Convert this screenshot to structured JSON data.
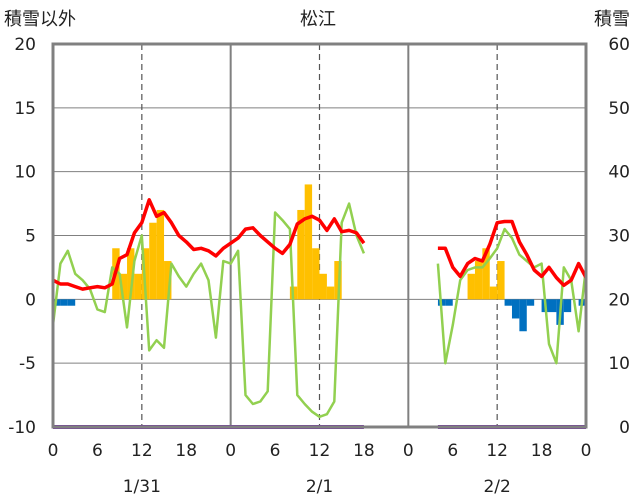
{
  "chart_data": {
    "type": "combo",
    "title": "松江",
    "left_axis_title": "積雪以外",
    "right_axis_title": "積雪",
    "left_ylim": [
      -10,
      20
    ],
    "left_ticks": [
      "20",
      "15",
      "10",
      "5",
      "0",
      "-5",
      "-10"
    ],
    "right_ylim": [
      0,
      60
    ],
    "right_ticks": [
      "60",
      "50",
      "40",
      "30",
      "20",
      "10",
      "0"
    ],
    "x_range_hours": [
      0,
      72
    ],
    "x_tick_labels": [
      "0",
      "6",
      "12",
      "18",
      "0",
      "6",
      "12",
      "18",
      "0",
      "6",
      "12",
      "18",
      "0"
    ],
    "day_labels": [
      "1/31",
      "2/1",
      "2/2"
    ],
    "colors": {
      "frame": "#808080",
      "grid": "#808080",
      "temperature": "#ff0000",
      "wind": "#92d050",
      "precip_pos": "#ffc000",
      "precip_neg": "#0070c0",
      "snow_depth": "#7030a0"
    },
    "precip_pos": [
      [
        8.5,
        4
      ],
      [
        9.5,
        2
      ],
      [
        10.5,
        4
      ],
      [
        11.5,
        2
      ],
      [
        12.5,
        4
      ],
      [
        13.5,
        6
      ],
      [
        14.5,
        7
      ],
      [
        15.5,
        3
      ],
      [
        32.5,
        1
      ],
      [
        33.5,
        7
      ],
      [
        34.5,
        9
      ],
      [
        35.5,
        4
      ],
      [
        36.5,
        2
      ],
      [
        37.5,
        1
      ],
      [
        38.5,
        3
      ],
      [
        56.5,
        2
      ],
      [
        57.5,
        3
      ],
      [
        58.5,
        4
      ],
      [
        59.5,
        1
      ],
      [
        60.5,
        3
      ]
    ],
    "precip_neg": [
      [
        0.5,
        -0.5
      ],
      [
        1.5,
        -0.5
      ],
      [
        2.5,
        -0.5
      ],
      [
        52.5,
        -0.5
      ],
      [
        53.5,
        -0.5
      ],
      [
        61.5,
        -0.5
      ],
      [
        62.5,
        -1.5
      ],
      [
        63.5,
        -2.5
      ],
      [
        64.5,
        -0.5
      ],
      [
        66.5,
        -1
      ],
      [
        67.5,
        -1
      ],
      [
        68.5,
        -2
      ],
      [
        69.5,
        -1
      ],
      [
        71.5,
        -0.5
      ]
    ],
    "temperature": [
      [
        [
          0,
          1.5
        ],
        [
          1,
          1.2
        ],
        [
          2,
          1.2
        ],
        [
          3,
          1.0
        ],
        [
          4,
          0.8
        ],
        [
          5,
          0.9
        ],
        [
          6,
          1.0
        ],
        [
          7,
          0.9
        ],
        [
          8,
          1.2
        ],
        [
          9,
          3.2
        ],
        [
          10,
          3.5
        ],
        [
          11,
          5.2
        ],
        [
          12,
          6.0
        ],
        [
          13,
          7.8
        ],
        [
          14,
          6.5
        ],
        [
          15,
          6.8
        ],
        [
          16,
          6.0
        ],
        [
          17,
          5.0
        ],
        [
          18,
          4.5
        ],
        [
          19,
          3.9
        ],
        [
          20,
          4.0
        ],
        [
          21,
          3.8
        ],
        [
          22,
          3.4
        ],
        [
          23,
          4.0
        ],
        [
          24,
          4.4
        ],
        [
          25,
          4.8
        ],
        [
          26,
          5.5
        ],
        [
          27,
          5.6
        ],
        [
          28,
          5.0
        ],
        [
          29,
          4.5
        ],
        [
          30,
          4.0
        ],
        [
          31,
          3.6
        ],
        [
          32,
          4.3
        ],
        [
          33,
          5.9
        ],
        [
          34,
          6.3
        ],
        [
          35,
          6.5
        ],
        [
          36,
          6.2
        ],
        [
          37,
          5.4
        ],
        [
          38,
          6.3
        ],
        [
          39,
          5.3
        ],
        [
          40,
          5.4
        ],
        [
          41,
          5.2
        ],
        [
          42,
          4.4
        ]
      ],
      [
        [
          52,
          4.0
        ],
        [
          53,
          4.0
        ],
        [
          54,
          2.5
        ],
        [
          55,
          1.8
        ],
        [
          56,
          2.8
        ],
        [
          57,
          3.2
        ],
        [
          58,
          3.0
        ],
        [
          59,
          4.3
        ],
        [
          60,
          6.0
        ],
        [
          61,
          6.1
        ],
        [
          62,
          6.1
        ],
        [
          63,
          4.5
        ],
        [
          64,
          3.5
        ],
        [
          65,
          2.3
        ],
        [
          66,
          1.8
        ],
        [
          67,
          2.5
        ],
        [
          68,
          1.7
        ],
        [
          69,
          1.1
        ],
        [
          70,
          1.5
        ],
        [
          71,
          2.8
        ],
        [
          72,
          1.7
        ]
      ]
    ],
    "wind": [
      [
        [
          0,
          -2.0
        ],
        [
          1,
          2.8
        ],
        [
          2,
          3.8
        ],
        [
          3,
          2.0
        ],
        [
          4,
          1.5
        ],
        [
          5,
          0.8
        ],
        [
          6,
          -0.8
        ],
        [
          7,
          -1.0
        ],
        [
          8,
          2.5
        ],
        [
          9,
          2.0
        ],
        [
          10,
          -2.2
        ],
        [
          11,
          3.0
        ],
        [
          12,
          5.0
        ],
        [
          13,
          -4.0
        ],
        [
          14,
          -3.2
        ],
        [
          15,
          -3.8
        ],
        [
          16,
          2.8
        ],
        [
          17,
          1.8
        ],
        [
          18,
          1.0
        ],
        [
          19,
          2.0
        ],
        [
          20,
          2.8
        ],
        [
          21,
          1.5
        ],
        [
          22,
          -3.0
        ],
        [
          23,
          3.0
        ],
        [
          24,
          2.8
        ],
        [
          25,
          3.8
        ],
        [
          26,
          -7.5
        ],
        [
          27,
          -8.2
        ],
        [
          28,
          -8.0
        ],
        [
          29,
          -7.2
        ],
        [
          30,
          6.8
        ],
        [
          31,
          6.2
        ],
        [
          32,
          5.5
        ],
        [
          33,
          -7.5
        ],
        [
          34,
          -8.2
        ],
        [
          35,
          -8.8
        ],
        [
          36,
          -9.2
        ],
        [
          37,
          -9.0
        ],
        [
          38,
          -8.0
        ],
        [
          39,
          6.0
        ],
        [
          40,
          7.5
        ],
        [
          41,
          5.0
        ],
        [
          42,
          3.6
        ]
      ],
      [
        [
          52,
          2.8
        ],
        [
          53,
          -5.0
        ],
        [
          54,
          -2.0
        ],
        [
          55,
          1.5
        ],
        [
          56,
          2.3
        ],
        [
          57,
          2.5
        ],
        [
          58,
          2.5
        ],
        [
          59,
          3.2
        ],
        [
          60,
          4.0
        ],
        [
          61,
          5.5
        ],
        [
          62,
          4.8
        ],
        [
          63,
          3.5
        ],
        [
          64,
          3.0
        ],
        [
          65,
          2.5
        ],
        [
          66,
          2.8
        ],
        [
          67,
          -3.5
        ],
        [
          68,
          -5.0
        ],
        [
          69,
          2.5
        ],
        [
          70,
          1.5
        ],
        [
          71,
          -2.5
        ],
        [
          72,
          2.5
        ]
      ]
    ],
    "snow_depth": [
      [
        [
          0,
          0
        ],
        [
          42,
          0
        ]
      ],
      [
        [
          52,
          0
        ],
        [
          72,
          0
        ]
      ]
    ]
  }
}
